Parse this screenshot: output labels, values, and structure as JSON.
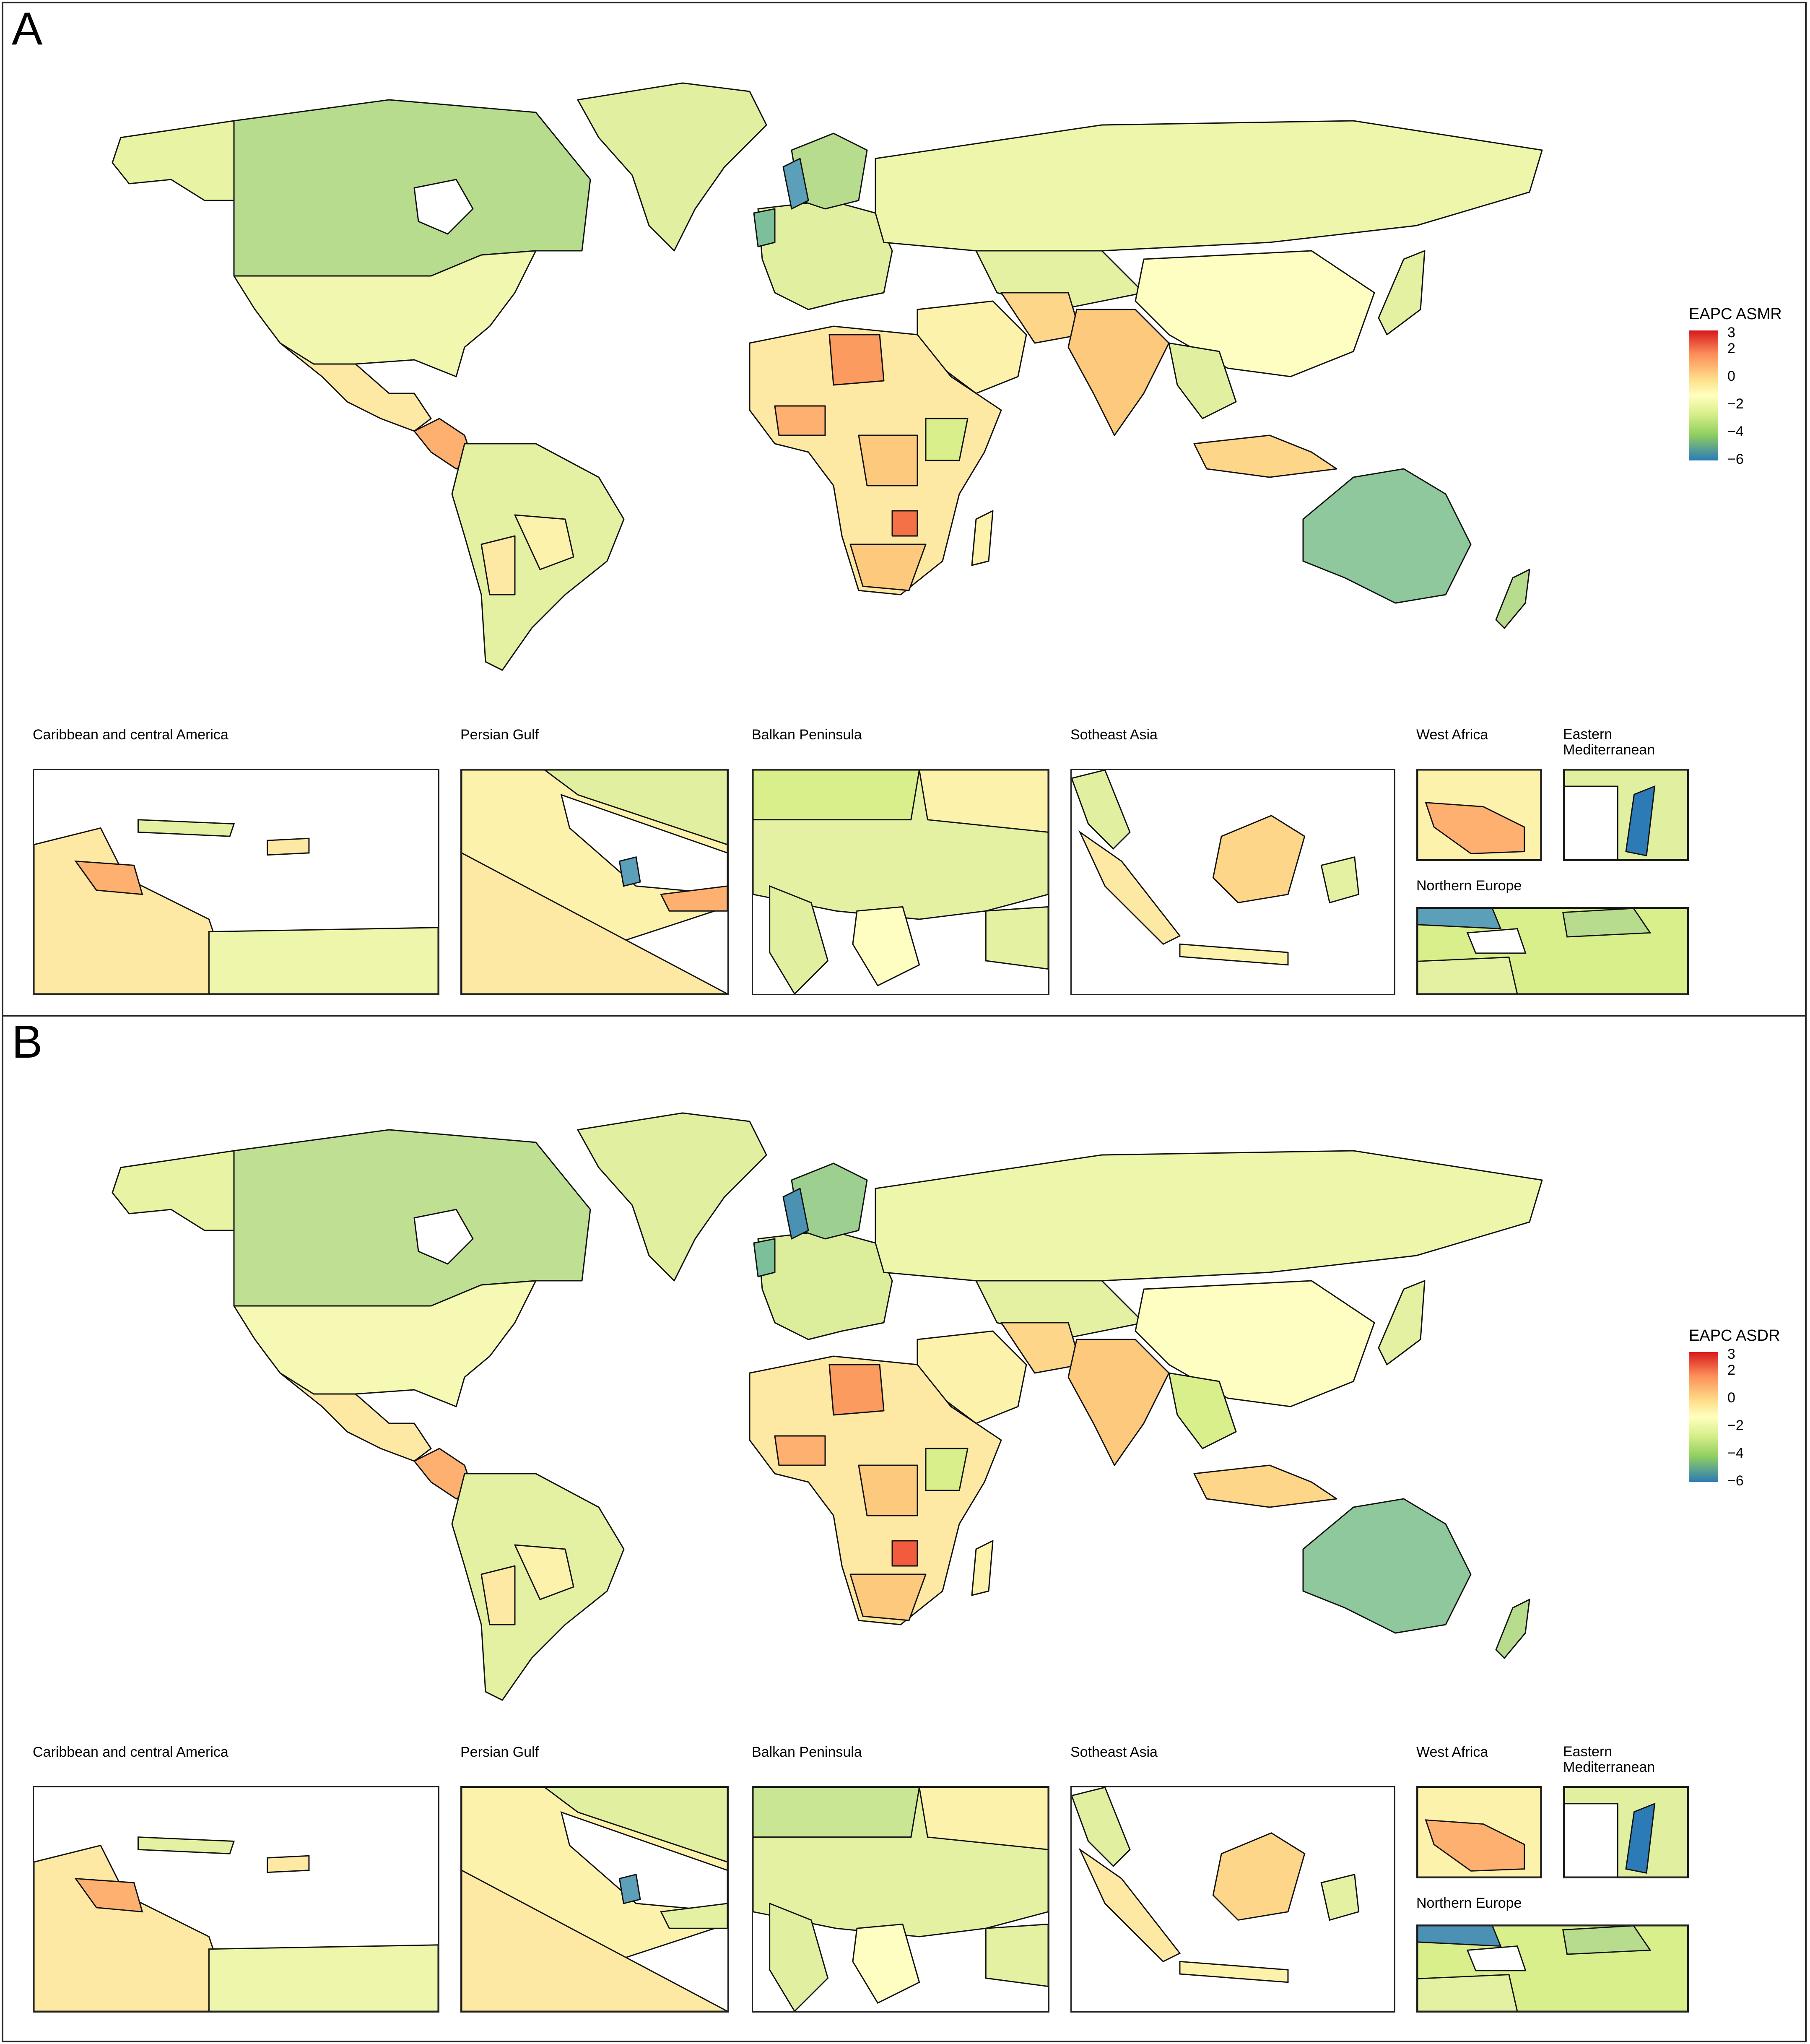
{
  "panels": [
    {
      "letter": "A",
      "legend": {
        "title": "EAPC ASMR",
        "ticks": [
          "3",
          "2",
          "0",
          "−2",
          "−4",
          "−6"
        ]
      },
      "insets": [
        {
          "label": "Caribbean and central America"
        },
        {
          "label": "Persian Gulf"
        },
        {
          "label": "Balkan Peninsula"
        },
        {
          "label": "Sotheast Asia"
        },
        {
          "label": "West Africa"
        },
        {
          "label": "Eastern\nMediterranean"
        },
        {
          "label": "Northern Europe"
        }
      ]
    },
    {
      "letter": "B",
      "legend": {
        "title": "EAPC ASDR",
        "ticks": [
          "3",
          "2",
          "0",
          "−2",
          "−4",
          "−6"
        ]
      },
      "insets": [
        {
          "label": "Caribbean and central America"
        },
        {
          "label": "Persian Gulf"
        },
        {
          "label": "Balkan Peninsula"
        },
        {
          "label": "Sotheast Asia"
        },
        {
          "label": "West Africa"
        },
        {
          "label": "Eastern\nMediterranean"
        },
        {
          "label": "Northern Europe"
        }
      ]
    }
  ],
  "colors": {
    "high": "#d7191c",
    "mid_high": "#fc8d59",
    "mid": "#fee08b",
    "neutral": "#ffffbf",
    "mid_low": "#d9ef8b",
    "low": "#91cf60",
    "lowest": "#2c7bb6"
  }
}
